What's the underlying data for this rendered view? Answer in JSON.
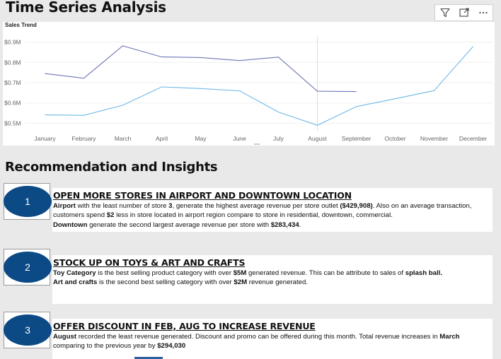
{
  "page": {
    "title": "Time Series Analysis"
  },
  "toolbar": {
    "icons": [
      "filter-icon",
      "focus-mode-icon",
      "more-options-icon"
    ]
  },
  "chart_data": {
    "type": "line",
    "title": "Sales Trend",
    "categories": [
      "January",
      "February",
      "March",
      "April",
      "May",
      "June",
      "July",
      "August",
      "September",
      "October",
      "November",
      "December"
    ],
    "y_ticks": [
      "$0.9M",
      "$0.8M",
      "$0.7M",
      "$0.6M",
      "$0.5M"
    ],
    "y_tick_values": [
      0.9,
      0.8,
      0.7,
      0.6,
      0.5
    ],
    "ylim": [
      0.47,
      0.93
    ],
    "grid": true,
    "hover_marker_category": "August",
    "series": [
      {
        "color": "#6f74b8",
        "values": [
          0.745,
          0.722,
          0.882,
          0.827,
          0.824,
          0.809,
          0.826,
          0.658,
          0.656,
          null,
          null,
          null
        ]
      },
      {
        "color": "#6db8e8",
        "values": [
          0.541,
          0.539,
          0.589,
          0.679,
          0.671,
          0.66,
          0.555,
          0.49,
          0.582,
          0.621,
          0.661,
          0.878
        ]
      }
    ]
  },
  "insights": {
    "title": "Recommendation and Insights",
    "items": [
      {
        "number": "1",
        "heading": "OPEN MORE STORES IN AIRPORT AND DOWNTOWN LOCATION",
        "p1": {
          "b1": "Airport",
          "t1": " with the least number of store ",
          "b2": "3",
          "t2": ", generate the highest average revenue per store outlet ",
          "b3": "($429,908)",
          "t3": ". Also on an average transaction, customers spend  ",
          "b4": "$2",
          "t4": " less in store located in airport region compare to store in residential, downtown, commercial."
        },
        "p2": {
          "b1": "Downtown",
          "t1": " generate the second largest average revenue per store with ",
          "b2": "$283,434",
          "t2": "."
        }
      },
      {
        "number": "2",
        "heading": "STOCK UP ON TOYS & ART AND CRAFTS",
        "p1": {
          "b1": "Toy Category",
          "t1": " is the best selling product category with over ",
          "b2": "$5M",
          "t2": " generated revenue. This can be attribute to sales of ",
          "b3": "splash ball.",
          "t3": ""
        },
        "p2": {
          "b1": "Art and crafts",
          "t1": " is the second best selling category with over ",
          "b2": "$2M",
          "t2": " revenue generated."
        }
      },
      {
        "number": "3",
        "heading": "OFFER DISCOUNT IN FEB, AUG TO INCREASE REVENUE",
        "p1": {
          "b1": "August",
          "t1": " recorded the least revenue generated. Discount and promo can be offered during this month. Total revenue increases in ",
          "b2": "March",
          "t2": " comparing to the previous year by ",
          "b3": "$294,030",
          "t3": ""
        }
      }
    ]
  }
}
